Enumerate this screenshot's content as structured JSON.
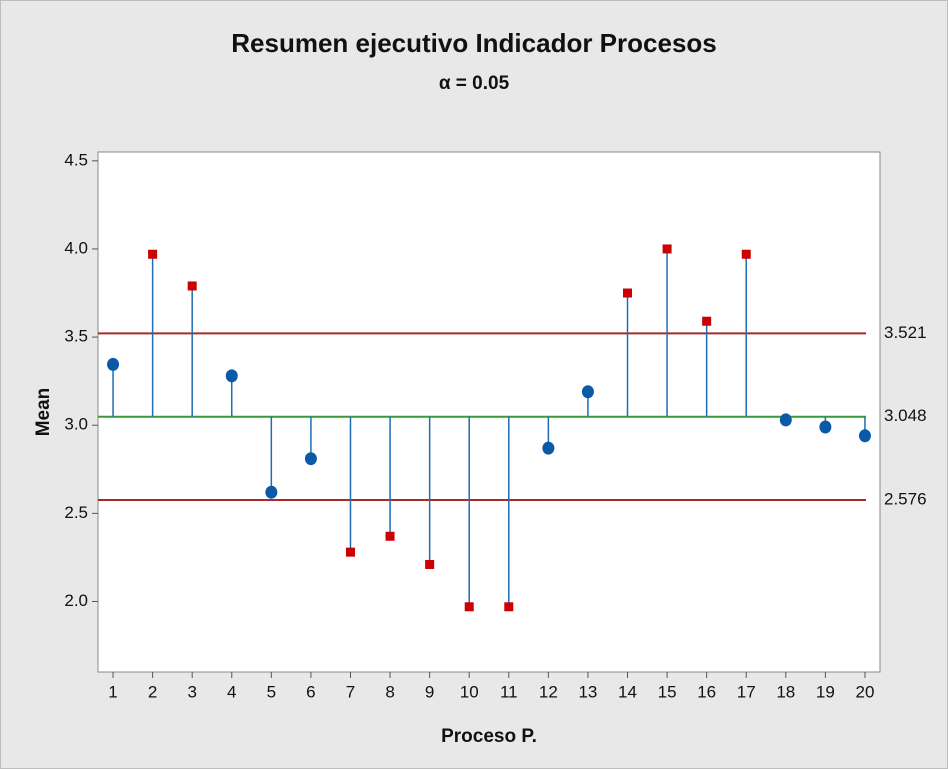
{
  "chart_data": {
    "type": "anom",
    "title": "Resumen ejecutivo Indicador Procesos",
    "subtitle": "α = 0.05",
    "xlabel": "Proceso P.",
    "ylabel": "Mean",
    "x": [
      1,
      2,
      3,
      4,
      5,
      6,
      7,
      8,
      9,
      10,
      11,
      12,
      13,
      14,
      15,
      16,
      17,
      18,
      19,
      20
    ],
    "values": [
      3.345,
      3.97,
      3.79,
      3.28,
      2.62,
      2.81,
      2.28,
      2.37,
      2.21,
      1.97,
      1.97,
      2.87,
      3.19,
      3.75,
      4.0,
      3.59,
      3.97,
      3.03,
      2.99,
      2.94
    ],
    "xlim": [
      0.62,
      20.38
    ],
    "xticks": [
      1,
      2,
      3,
      4,
      5,
      6,
      7,
      8,
      9,
      10,
      11,
      12,
      13,
      14,
      15,
      16,
      17,
      18,
      19,
      20
    ],
    "ylim": [
      1.6,
      4.55
    ],
    "yticks": [
      {
        "value": 2,
        "label": "2.0"
      },
      2.5,
      {
        "value": 3,
        "label": "3.0"
      },
      3.5,
      {
        "value": 4,
        "label": "4.0"
      },
      4.5
    ],
    "center_line": {
      "value": 3.048,
      "color": "#3a9a3a"
    },
    "limits": [
      {
        "value": 3.521,
        "color": "#a52a2a"
      },
      {
        "value": 2.576,
        "color": "#a52a2a"
      }
    ],
    "color": "#0b5aa8",
    "outside_color": "#cc0000"
  }
}
